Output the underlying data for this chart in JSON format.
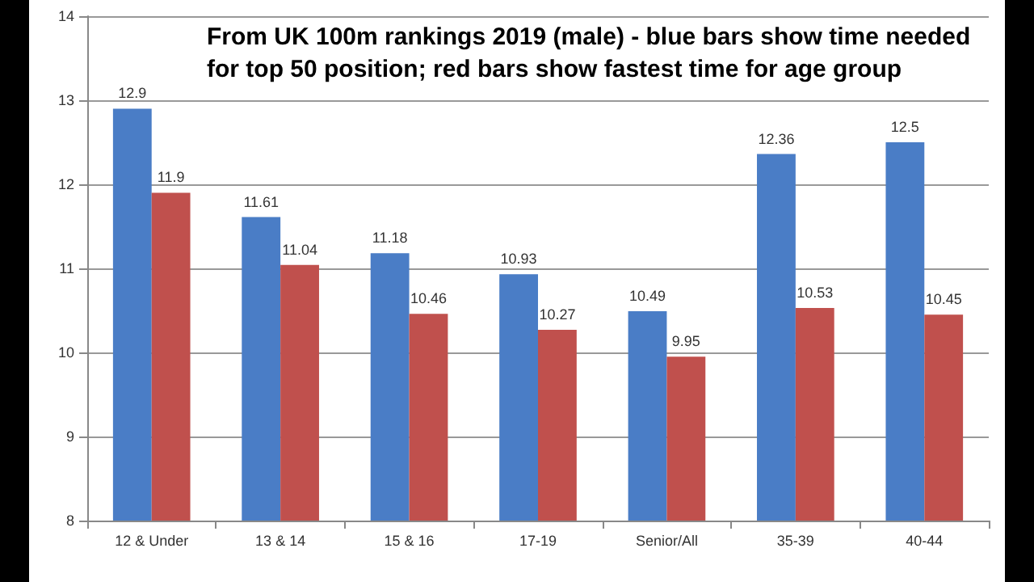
{
  "chart_data": {
    "type": "bar",
    "title": "From UK 100m rankings 2019 (male) - blue bars show time needed for top 50 position; red bars show fastest time for age group",
    "categories": [
      "12 & Under",
      "13 & 14",
      "15 & 16",
      "17-19",
      "Senior/All",
      "35-39",
      "40-44"
    ],
    "series": [
      {
        "color": "#4a7dc6",
        "values": [
          12.9,
          11.61,
          11.18,
          10.93,
          10.49,
          12.36,
          12.5
        ]
      },
      {
        "color": "#c0504d",
        "values": [
          11.9,
          11.04,
          10.46,
          10.27,
          9.95,
          10.53,
          10.45
        ]
      }
    ],
    "ylim": [
      8,
      14
    ],
    "yticks": [
      8,
      9,
      10,
      11,
      12,
      13,
      14
    ],
    "grid": "y",
    "data_labels": true
  }
}
